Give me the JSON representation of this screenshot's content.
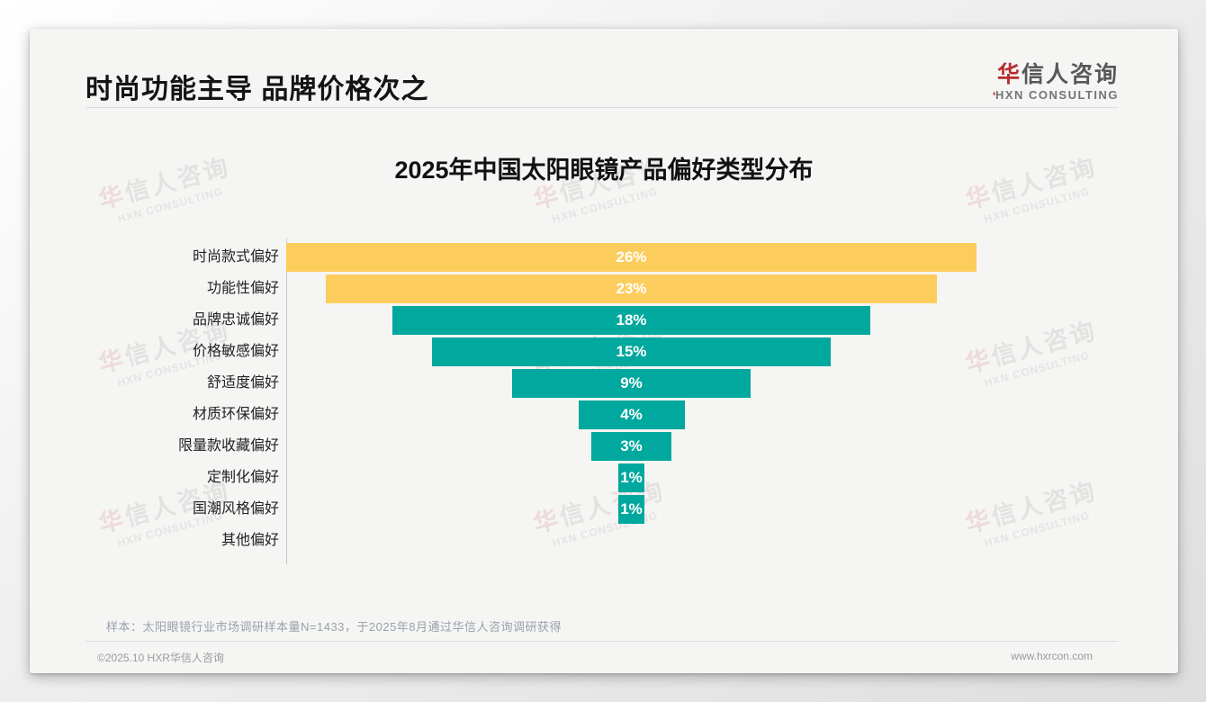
{
  "header": {
    "title": "时尚功能主导 品牌价格次之",
    "logo": {
      "accent_char": "华",
      "rest_chars": "信人咨询",
      "subtitle": "HXN CONSULTING",
      "accent_color": "#b32f2e"
    }
  },
  "watermark": {
    "line1_accent": "华",
    "line1_rest": "信人咨询",
    "line2": "HXN CONSULTING"
  },
  "chart_data": {
    "type": "bar",
    "variant": "horizontal-centered-funnel",
    "title": "2025年中国太阳眼镜产品偏好类型分布",
    "categories": [
      "时尚款式偏好",
      "功能性偏好",
      "品牌忠诚偏好",
      "价格敏感偏好",
      "舒适度偏好",
      "材质环保偏好",
      "限量款收藏偏好",
      "定制化偏好",
      "国潮风格偏好",
      "其他偏好"
    ],
    "values": [
      26,
      23,
      18,
      15,
      9,
      4,
      3,
      1,
      1,
      0
    ],
    "value_suffix": "%",
    "xlim": [
      0,
      26
    ],
    "highlight_count": 2,
    "colors": {
      "highlight_bar": "#fccd5d",
      "default_bar": "#00a89d",
      "value_label": "#ffffff",
      "axis_line": "#c9c9c9"
    },
    "legend": "none",
    "grid": "off"
  },
  "footnote": "样本：太阳眼镜行业市场调研样本量N=1433，于2025年8月通过华信人咨询调研获得",
  "footer": {
    "copyright": "©2025.10 HXR华信人咨询",
    "website": "www.hxrcon.com"
  }
}
